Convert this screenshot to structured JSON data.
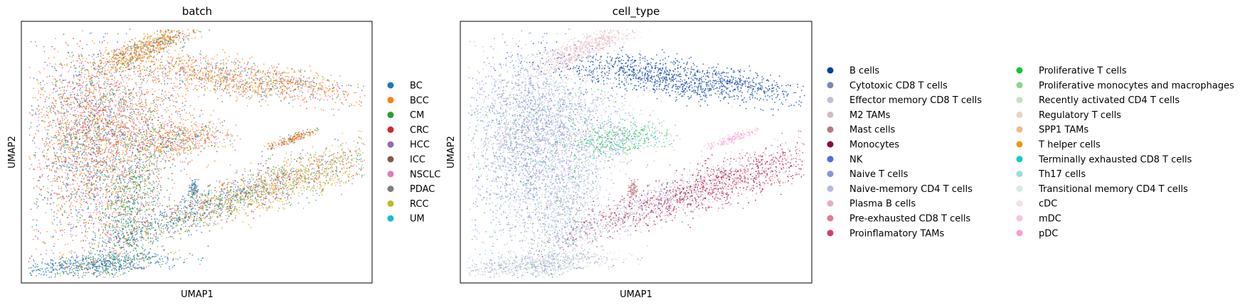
{
  "chart_data": [
    {
      "type": "scatter",
      "title": "batch",
      "xlabel": "UMAP1",
      "ylabel": "UMAP2",
      "legend_placement": "right",
      "legend": [
        {
          "label": "BC",
          "color": "#1f77b4"
        },
        {
          "label": "BCC",
          "color": "#ff7f0e"
        },
        {
          "label": "CM",
          "color": "#2ca02c"
        },
        {
          "label": "CRC",
          "color": "#d62728"
        },
        {
          "label": "HCC",
          "color": "#9467bd"
        },
        {
          "label": "ICC",
          "color": "#8c564b"
        },
        {
          "label": "NSCLC",
          "color": "#e377c2"
        },
        {
          "label": "PDAC",
          "color": "#7f7f7f"
        },
        {
          "label": "RCC",
          "color": "#bcbd22"
        },
        {
          "label": "UM",
          "color": "#17becf"
        }
      ]
    },
    {
      "type": "scatter",
      "title": "cell_type",
      "xlabel": "UMAP1",
      "ylabel": "UMAP2",
      "legend_placement": "right",
      "legend": [
        {
          "label": "B cells",
          "color": "#023fa5"
        },
        {
          "label": "Cytotoxic CD8 T cells",
          "color": "#7d87b9"
        },
        {
          "label": "Effector memory CD8 T cells",
          "color": "#bec1d4"
        },
        {
          "label": "M2 TAMs",
          "color": "#d6bcc0"
        },
        {
          "label": "Mast cells",
          "color": "#bb7784"
        },
        {
          "label": "Monocytes",
          "color": "#8e063b"
        },
        {
          "label": "NK",
          "color": "#4a6fe3"
        },
        {
          "label": "Naive T cells",
          "color": "#8595e1"
        },
        {
          "label": "Naive-memory CD4 T cells",
          "color": "#b5bbe3"
        },
        {
          "label": "Plasma B cells",
          "color": "#e6afb9"
        },
        {
          "label": "Pre-exhausted CD8 T cells",
          "color": "#e07b91"
        },
        {
          "label": "Proinflamatory TAMs",
          "color": "#d33f6a"
        },
        {
          "label": "Proliferative T cells",
          "color": "#11c638"
        },
        {
          "label": "Proliferative monocytes and macrophages",
          "color": "#8dd593"
        },
        {
          "label": "Recently activated CD4 T cells",
          "color": "#c6dec7"
        },
        {
          "label": "Regulatory T cells",
          "color": "#ead3c6"
        },
        {
          "label": "SPP1 TAMs",
          "color": "#f0b98d"
        },
        {
          "label": "T helper cells",
          "color": "#ef9708"
        },
        {
          "label": "Terminally exhausted CD8 T cells",
          "color": "#0fcfc0"
        },
        {
          "label": "Th17 cells",
          "color": "#9cded6"
        },
        {
          "label": "Transitional memory CD4 T cells",
          "color": "#d5eae7"
        },
        {
          "label": "cDC",
          "color": "#f3e1eb"
        },
        {
          "label": "mDC",
          "color": "#f6c4e1"
        },
        {
          "label": "pDC",
          "color": "#f79cd4"
        }
      ]
    }
  ]
}
